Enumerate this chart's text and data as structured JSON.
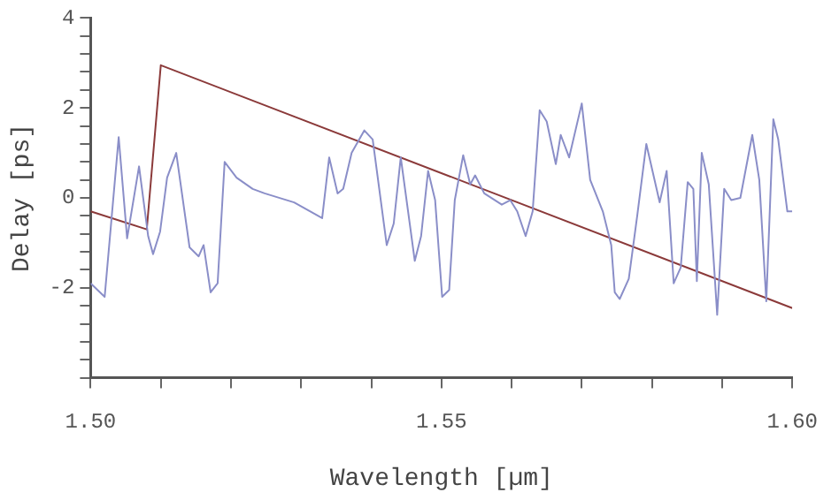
{
  "chart_data": {
    "type": "line",
    "xlabel": "Wavelength [µm]",
    "ylabel": "Delay [ps]",
    "xlim": [
      1.5,
      1.6
    ],
    "xticks": [
      {
        "value": 1.5,
        "label": "1.50"
      },
      {
        "value": 1.51,
        "label": null
      },
      {
        "value": 1.52,
        "label": null
      },
      {
        "value": 1.53,
        "label": null
      },
      {
        "value": 1.54,
        "label": null
      },
      {
        "value": 1.55,
        "label": "1.55"
      },
      {
        "value": 1.56,
        "label": null
      },
      {
        "value": 1.57,
        "label": null
      },
      {
        "value": 1.58,
        "label": null
      },
      {
        "value": 1.59,
        "label": null
      },
      {
        "value": 1.6,
        "label": "1.60"
      }
    ],
    "ylim": [
      -4,
      4
    ],
    "yticks": [
      {
        "value": -4,
        "label": null
      },
      {
        "value": -3.6,
        "label": null
      },
      {
        "value": -3.2,
        "label": null
      },
      {
        "value": -2.8,
        "label": null
      },
      {
        "value": -2.4,
        "label": null
      },
      -2,
      {
        "value": -1.6,
        "label": null
      },
      {
        "value": -1.2,
        "label": null
      },
      {
        "value": -0.8,
        "label": null
      },
      {
        "value": -0.4,
        "label": null
      },
      0,
      {
        "value": 0.4,
        "label": null
      },
      {
        "value": 0.8,
        "label": null
      },
      {
        "value": 1.2,
        "label": null
      },
      {
        "value": 1.6,
        "label": null
      },
      2,
      {
        "value": 2.4,
        "label": null
      },
      {
        "value": 2.8,
        "label": null
      },
      {
        "value": 3.2,
        "label": null
      },
      {
        "value": 3.6,
        "label": null
      },
      4
    ],
    "grid": false,
    "legend": false,
    "marker": "none",
    "line_style": "solid",
    "series": [
      {
        "color": "#8a8ec8",
        "x": [
          1.5,
          1.502,
          1.504,
          1.5052,
          1.5069,
          1.5082,
          1.5089,
          1.5099,
          1.5109,
          1.5122,
          1.5141,
          1.5154,
          1.5161,
          1.5171,
          1.5181,
          1.5191,
          1.5208,
          1.5231,
          1.5248,
          1.529,
          1.533,
          1.534,
          1.5352,
          1.536,
          1.5372,
          1.539,
          1.5402,
          1.5422,
          1.5432,
          1.5442,
          1.5462,
          1.5471,
          1.5481,
          1.5491,
          1.5501,
          1.5511,
          1.5519,
          1.5531,
          1.5541,
          1.5548,
          1.5561,
          1.5586,
          1.5598,
          1.5608,
          1.562,
          1.563,
          1.564,
          1.565,
          1.5663,
          1.567,
          1.5682,
          1.57,
          1.5712,
          1.573,
          1.5742,
          1.5747,
          1.5754,
          1.5767,
          1.5779,
          1.5792,
          1.5811,
          1.5821,
          1.5831,
          1.5841,
          1.5851,
          1.5859,
          1.5864,
          1.5871,
          1.5881,
          1.5893,
          1.5903,
          1.5913,
          1.5926,
          1.5943,
          1.5953,
          1.5963,
          1.5973,
          1.598,
          1.5993,
          1.6
        ],
        "values": [
          -1.9,
          -2.2,
          1.35,
          -0.9,
          0.7,
          -0.85,
          -1.25,
          -0.75,
          0.45,
          1.0,
          -1.1,
          -1.3,
          -1.05,
          -2.1,
          -1.9,
          0.8,
          0.45,
          0.2,
          0.1,
          -0.1,
          -0.45,
          0.9,
          0.1,
          0.2,
          1.0,
          1.5,
          1.3,
          -1.05,
          -0.57,
          0.9,
          -1.4,
          -0.85,
          0.6,
          -0.05,
          -2.2,
          -2.05,
          -0.05,
          0.95,
          0.3,
          0.5,
          0.1,
          -0.15,
          -0.05,
          -0.3,
          -0.85,
          -0.3,
          1.95,
          1.7,
          0.75,
          1.4,
          0.9,
          2.1,
          0.4,
          -0.3,
          -1.05,
          -2.1,
          -2.25,
          -1.8,
          -0.4,
          1.2,
          -0.1,
          0.6,
          -1.9,
          -1.55,
          0.35,
          0.2,
          -1.85,
          1.0,
          0.3,
          -2.6,
          0.2,
          -0.05,
          0.0,
          1.4,
          0.4,
          -2.3,
          1.75,
          1.3,
          -0.3,
          -0.3
        ]
      },
      {
        "color": "#8b3a3a",
        "x": [
          1.5,
          1.508,
          1.51,
          1.6
        ],
        "values": [
          -0.3,
          -0.7,
          2.95,
          -2.45
        ]
      }
    ]
  }
}
